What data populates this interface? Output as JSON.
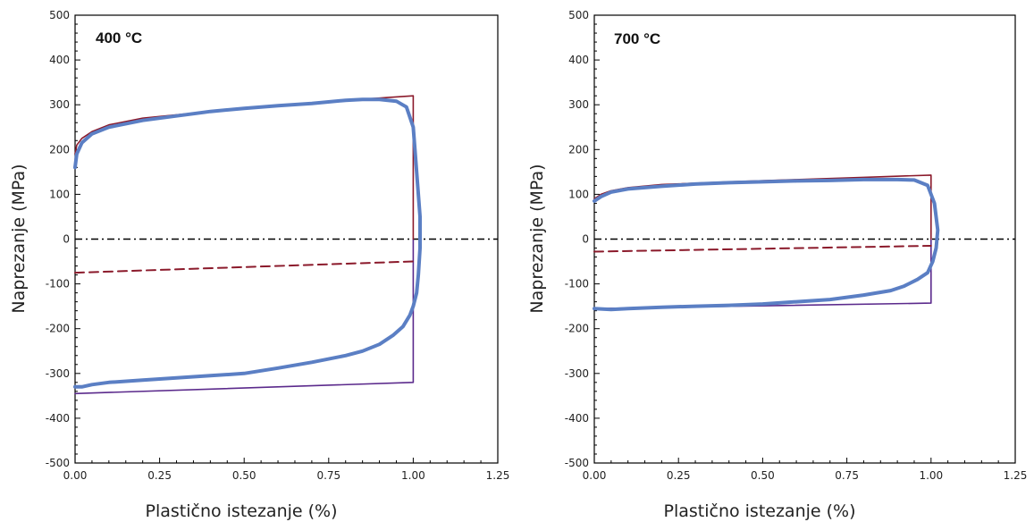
{
  "chart_data": [
    {
      "type": "line",
      "title": "400 °C",
      "xlabel": "Plastično istezanje (%)",
      "ylabel": "Naprezanje (MPa)",
      "xlim": [
        0,
        1.25
      ],
      "ylim": [
        -500,
        500
      ],
      "x_ticks": [
        "0.00",
        "0.25",
        "0.50",
        "0.75",
        "1.00",
        "1.25"
      ],
      "y_ticks": [
        "-500",
        "-400",
        "-300",
        "-200",
        "-100",
        "0",
        "100",
        "200",
        "300",
        "400",
        "500"
      ],
      "colors": {
        "measured": "#5b7fc4",
        "model": "#8b1a2b",
        "model_lower": "#5b2a8c",
        "zero_line": "#000000"
      },
      "series": [
        {
          "style": "measured",
          "x": [
            0.0,
            0.005,
            0.02,
            0.05,
            0.1,
            0.2,
            0.3,
            0.4,
            0.5,
            0.6,
            0.7,
            0.8,
            0.85,
            0.9,
            0.95,
            0.98,
            1.0,
            1.01,
            1.02,
            1.02,
            1.015,
            1.01,
            1.0,
            0.99,
            0.97,
            0.94,
            0.9,
            0.85,
            0.8,
            0.7,
            0.6,
            0.5,
            0.4,
            0.3,
            0.2,
            0.1,
            0.05,
            0.02,
            0.0
          ],
          "y": [
            160,
            190,
            215,
            235,
            250,
            265,
            275,
            285,
            292,
            298,
            303,
            310,
            312,
            312,
            308,
            295,
            250,
            150,
            50,
            -20,
            -80,
            -120,
            -150,
            -170,
            -195,
            -215,
            -235,
            -250,
            -260,
            -275,
            -288,
            -300,
            -305,
            -310,
            -315,
            -320,
            -325,
            -330,
            -330
          ]
        },
        {
          "style": "model",
          "x": [
            0.0,
            0.005,
            0.02,
            0.05,
            0.1,
            0.2,
            0.4,
            0.6,
            0.8,
            1.0,
            1.0
          ],
          "y": [
            190,
            210,
            225,
            240,
            255,
            270,
            285,
            298,
            310,
            320,
            0
          ]
        },
        {
          "style": "model-dashed",
          "x": [
            0.0,
            1.0
          ],
          "y": [
            -75,
            -50
          ]
        },
        {
          "style": "model-lower",
          "x": [
            1.0,
            1.0,
            0.0
          ],
          "y": [
            0,
            -320,
            -345
          ]
        }
      ]
    },
    {
      "type": "line",
      "title": "700 °C",
      "xlabel": "Plastično istezanje (%)",
      "ylabel": "Naprezanje (MPa)",
      "xlim": [
        0,
        1.25
      ],
      "ylim": [
        -500,
        500
      ],
      "x_ticks": [
        "0.00",
        "0.25",
        "0.50",
        "0.75",
        "1.00",
        "1.25"
      ],
      "y_ticks": [
        "-500",
        "-400",
        "-300",
        "-200",
        "-100",
        "0",
        "100",
        "200",
        "300",
        "400",
        "500"
      ],
      "colors": {
        "measured": "#5b7fc4",
        "model": "#8b1a2b",
        "model_lower": "#5b2a8c",
        "zero_line": "#000000"
      },
      "series": [
        {
          "style": "measured",
          "x": [
            0.0,
            0.02,
            0.05,
            0.1,
            0.2,
            0.3,
            0.4,
            0.5,
            0.6,
            0.7,
            0.8,
            0.9,
            0.95,
            0.99,
            1.01,
            1.02,
            1.015,
            1.005,
            0.99,
            0.96,
            0.92,
            0.88,
            0.8,
            0.7,
            0.6,
            0.5,
            0.4,
            0.3,
            0.2,
            0.1,
            0.05,
            0.0
          ],
          "y": [
            85,
            95,
            105,
            112,
            118,
            123,
            126,
            128,
            130,
            131,
            133,
            133,
            132,
            120,
            80,
            20,
            -20,
            -50,
            -75,
            -90,
            -105,
            -115,
            -125,
            -135,
            -140,
            -145,
            -148,
            -150,
            -152,
            -155,
            -157,
            -155
          ]
        },
        {
          "style": "model",
          "x": [
            0.0,
            0.02,
            0.05,
            0.1,
            0.2,
            0.4,
            0.6,
            0.8,
            1.0,
            1.0
          ],
          "y": [
            90,
            100,
            108,
            115,
            122,
            128,
            133,
            138,
            143,
            0
          ]
        },
        {
          "style": "model-dashed",
          "x": [
            0.0,
            1.0
          ],
          "y": [
            -28,
            -15
          ]
        },
        {
          "style": "model-lower",
          "x": [
            1.0,
            1.0,
            0.0
          ],
          "y": [
            0,
            -143,
            -155
          ]
        }
      ]
    }
  ]
}
